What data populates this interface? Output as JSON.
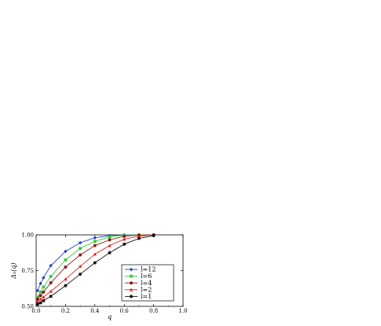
{
  "chart_data": {
    "type": "line",
    "title": "",
    "xlabel": "q",
    "ylabel": "Δ₁(q)",
    "xlim": [
      0.0,
      1.0
    ],
    "ylim": [
      0.5,
      1.0
    ],
    "xticks": [
      0.0,
      0.2,
      0.4,
      0.6,
      0.8,
      1.0
    ],
    "xtick_labels": [
      "0.0",
      "0.2",
      "0.4",
      "0.6",
      "0.8",
      "1.0"
    ],
    "yticks": [
      0.5,
      0.75,
      1.0
    ],
    "ytick_labels": [
      "0.50",
      "0.75",
      "1.00"
    ],
    "grid": false,
    "legend_position": "bottom-right",
    "series": [
      {
        "name": "l=12",
        "color": "#1f3fbf",
        "marker": "diamond",
        "x": [
          0.01,
          0.03,
          0.05,
          0.1,
          0.2,
          0.3,
          0.4,
          0.5,
          0.6,
          0.7,
          0.8
        ],
        "y": [
          0.61,
          0.66,
          0.7,
          0.785,
          0.885,
          0.945,
          0.98,
          0.995,
          1.0,
          1.0,
          1.0
        ]
      },
      {
        "name": "l=6",
        "color": "#33cc33",
        "marker": "square",
        "x": [
          0.01,
          0.03,
          0.05,
          0.1,
          0.2,
          0.3,
          0.4,
          0.5,
          0.6,
          0.7,
          0.8
        ],
        "y": [
          0.565,
          0.6,
          0.635,
          0.71,
          0.825,
          0.905,
          0.955,
          0.985,
          0.997,
          1.0,
          1.0
        ]
      },
      {
        "name": "l=4",
        "color": "#8b1a1a",
        "marker": "circle",
        "x": [
          0.01,
          0.03,
          0.05,
          0.1,
          0.2,
          0.3,
          0.4,
          0.5,
          0.6,
          0.7,
          0.8
        ],
        "y": [
          0.55,
          0.575,
          0.6,
          0.665,
          0.775,
          0.86,
          0.925,
          0.965,
          0.99,
          0.998,
          1.0
        ]
      },
      {
        "name": "l=2",
        "color": "#e02020",
        "marker": "triangle",
        "x": [
          0.01,
          0.03,
          0.05,
          0.1,
          0.2,
          0.3,
          0.4,
          0.5,
          0.6,
          0.7,
          0.8
        ],
        "y": [
          0.535,
          0.55,
          0.565,
          0.605,
          0.69,
          0.78,
          0.865,
          0.925,
          0.97,
          0.99,
          1.0
        ]
      },
      {
        "name": "l=1",
        "color": "#111111",
        "marker": "circle",
        "x": [
          0.01,
          0.03,
          0.05,
          0.1,
          0.2,
          0.3,
          0.4,
          0.5,
          0.6,
          0.7,
          0.8
        ],
        "y": [
          0.515,
          0.525,
          0.54,
          0.57,
          0.645,
          0.725,
          0.805,
          0.875,
          0.935,
          0.975,
          0.995
        ]
      }
    ]
  }
}
